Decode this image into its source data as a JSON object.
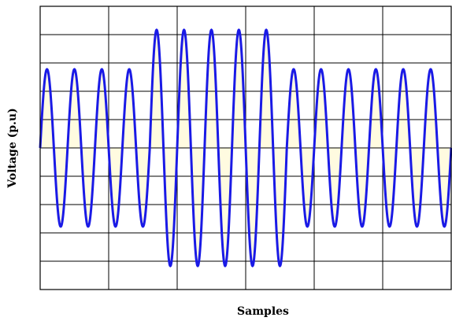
{
  "chart_data": {
    "type": "line",
    "title": "",
    "xlabel": "Samples",
    "ylabel": "Voltage (p.u)",
    "grid": true,
    "legend": "none",
    "x_tick_labels": false,
    "y_tick_labels": false,
    "xlim": [
      0,
      15
    ],
    "ylim": [
      -1.8,
      1.8
    ],
    "series": [
      {
        "color": "#1a1ae6",
        "shape": "sine",
        "cycles": 15,
        "segments": [
          {
            "from_cycle": 0,
            "to_cycle": 4,
            "amplitude": 1.0
          },
          {
            "from_cycle": 4,
            "to_cycle": 9,
            "amplitude": 1.5
          },
          {
            "from_cycle": 9,
            "to_cycle": 15,
            "amplitude": 1.0
          }
        ]
      }
    ],
    "fill_color": "#fffbe0"
  }
}
